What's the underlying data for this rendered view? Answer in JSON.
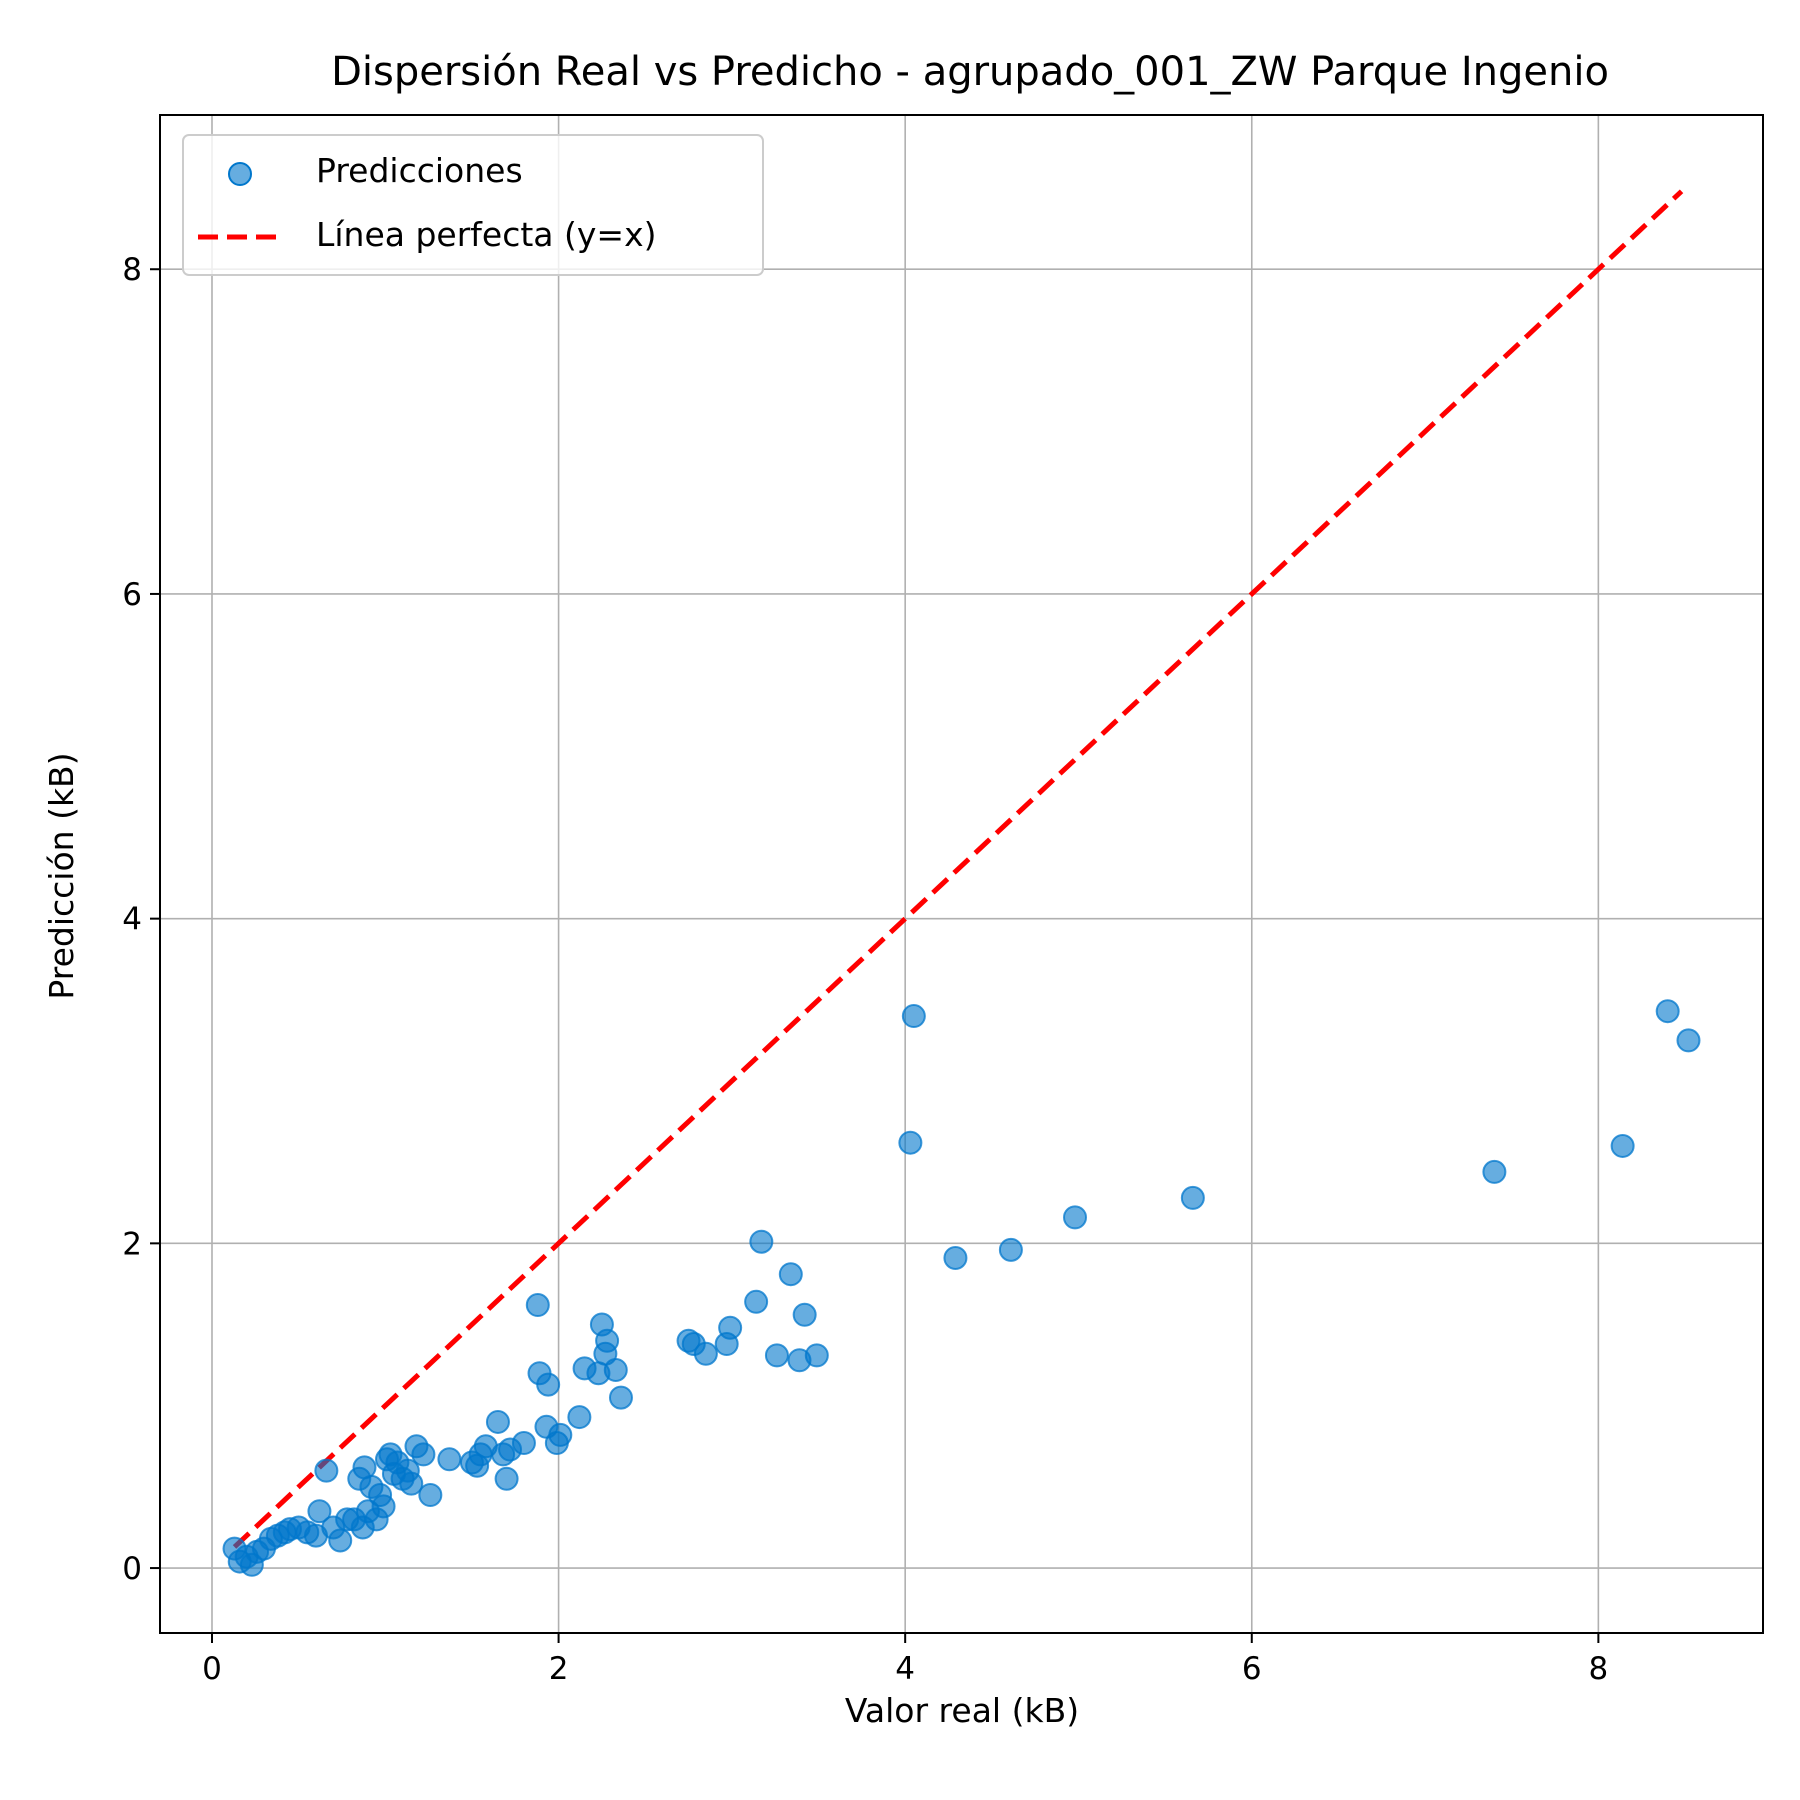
{
  "chart_data": {
    "type": "scatter",
    "title": "Dispersión Real vs Predicho - agrupado_001_ZW Parque Ingenio",
    "xlabel": "Valor real (kB)",
    "ylabel": "Predicción (kB)",
    "xlim": [
      -0.3,
      8.95
    ],
    "ylim": [
      -0.4,
      8.95
    ],
    "xticks": [
      0,
      2,
      4,
      6,
      8
    ],
    "yticks": [
      0,
      2,
      4,
      6,
      8
    ],
    "grid": true,
    "legend_position": "top-left",
    "colors": {
      "points": "#0077cc",
      "perfect_line": "#ff0000"
    },
    "series": [
      {
        "name": "Predicciones",
        "kind": "scatter",
        "points": [
          [
            0.13,
            0.12
          ],
          [
            0.16,
            0.04
          ],
          [
            0.2,
            0.07
          ],
          [
            0.23,
            0.02
          ],
          [
            0.26,
            0.1
          ],
          [
            0.3,
            0.12
          ],
          [
            0.34,
            0.18
          ],
          [
            0.38,
            0.2
          ],
          [
            0.42,
            0.22
          ],
          [
            0.45,
            0.24
          ],
          [
            0.5,
            0.25
          ],
          [
            0.55,
            0.22
          ],
          [
            0.6,
            0.2
          ],
          [
            0.62,
            0.35
          ],
          [
            0.66,
            0.6
          ],
          [
            0.7,
            0.25
          ],
          [
            0.74,
            0.17
          ],
          [
            0.78,
            0.3
          ],
          [
            0.82,
            0.3
          ],
          [
            0.85,
            0.55
          ],
          [
            0.87,
            0.25
          ],
          [
            0.88,
            0.62
          ],
          [
            0.9,
            0.35
          ],
          [
            0.92,
            0.5
          ],
          [
            0.95,
            0.3
          ],
          [
            0.97,
            0.45
          ],
          [
            0.99,
            0.38
          ],
          [
            1.01,
            0.67
          ],
          [
            1.03,
            0.7
          ],
          [
            1.05,
            0.58
          ],
          [
            1.07,
            0.65
          ],
          [
            1.1,
            0.55
          ],
          [
            1.13,
            0.6
          ],
          [
            1.15,
            0.52
          ],
          [
            1.18,
            0.75
          ],
          [
            1.22,
            0.7
          ],
          [
            1.26,
            0.45
          ],
          [
            1.37,
            0.67
          ],
          [
            1.5,
            0.65
          ],
          [
            1.53,
            0.63
          ],
          [
            1.55,
            0.7
          ],
          [
            1.58,
            0.75
          ],
          [
            1.65,
            0.9
          ],
          [
            1.68,
            0.7
          ],
          [
            1.7,
            0.55
          ],
          [
            1.72,
            0.73
          ],
          [
            1.8,
            0.77
          ],
          [
            1.88,
            1.62
          ],
          [
            1.89,
            1.2
          ],
          [
            1.93,
            0.87
          ],
          [
            1.94,
            1.13
          ],
          [
            1.99,
            0.77
          ],
          [
            2.01,
            0.82
          ],
          [
            2.12,
            0.93
          ],
          [
            2.15,
            1.23
          ],
          [
            2.23,
            1.2
          ],
          [
            2.25,
            1.5
          ],
          [
            2.27,
            1.32
          ],
          [
            2.28,
            1.4
          ],
          [
            2.33,
            1.22
          ],
          [
            2.36,
            1.05
          ],
          [
            2.75,
            1.4
          ],
          [
            2.78,
            1.38
          ],
          [
            2.85,
            1.32
          ],
          [
            2.97,
            1.38
          ],
          [
            2.99,
            1.48
          ],
          [
            3.14,
            1.64
          ],
          [
            3.17,
            2.01
          ],
          [
            3.26,
            1.31
          ],
          [
            3.34,
            1.81
          ],
          [
            3.39,
            1.28
          ],
          [
            3.42,
            1.56
          ],
          [
            3.49,
            1.31
          ],
          [
            4.03,
            2.62
          ],
          [
            4.05,
            3.4
          ],
          [
            4.29,
            1.91
          ],
          [
            4.61,
            1.96
          ],
          [
            4.98,
            2.16
          ],
          [
            5.66,
            2.28
          ],
          [
            7.4,
            2.44
          ],
          [
            8.14,
            2.6
          ],
          [
            8.4,
            3.43
          ],
          [
            8.52,
            3.25
          ]
        ]
      },
      {
        "name": "Línea perfecta (y=x)",
        "kind": "line",
        "points": [
          [
            0.13,
            0.13
          ],
          [
            8.48,
            8.48
          ]
        ]
      }
    ]
  }
}
